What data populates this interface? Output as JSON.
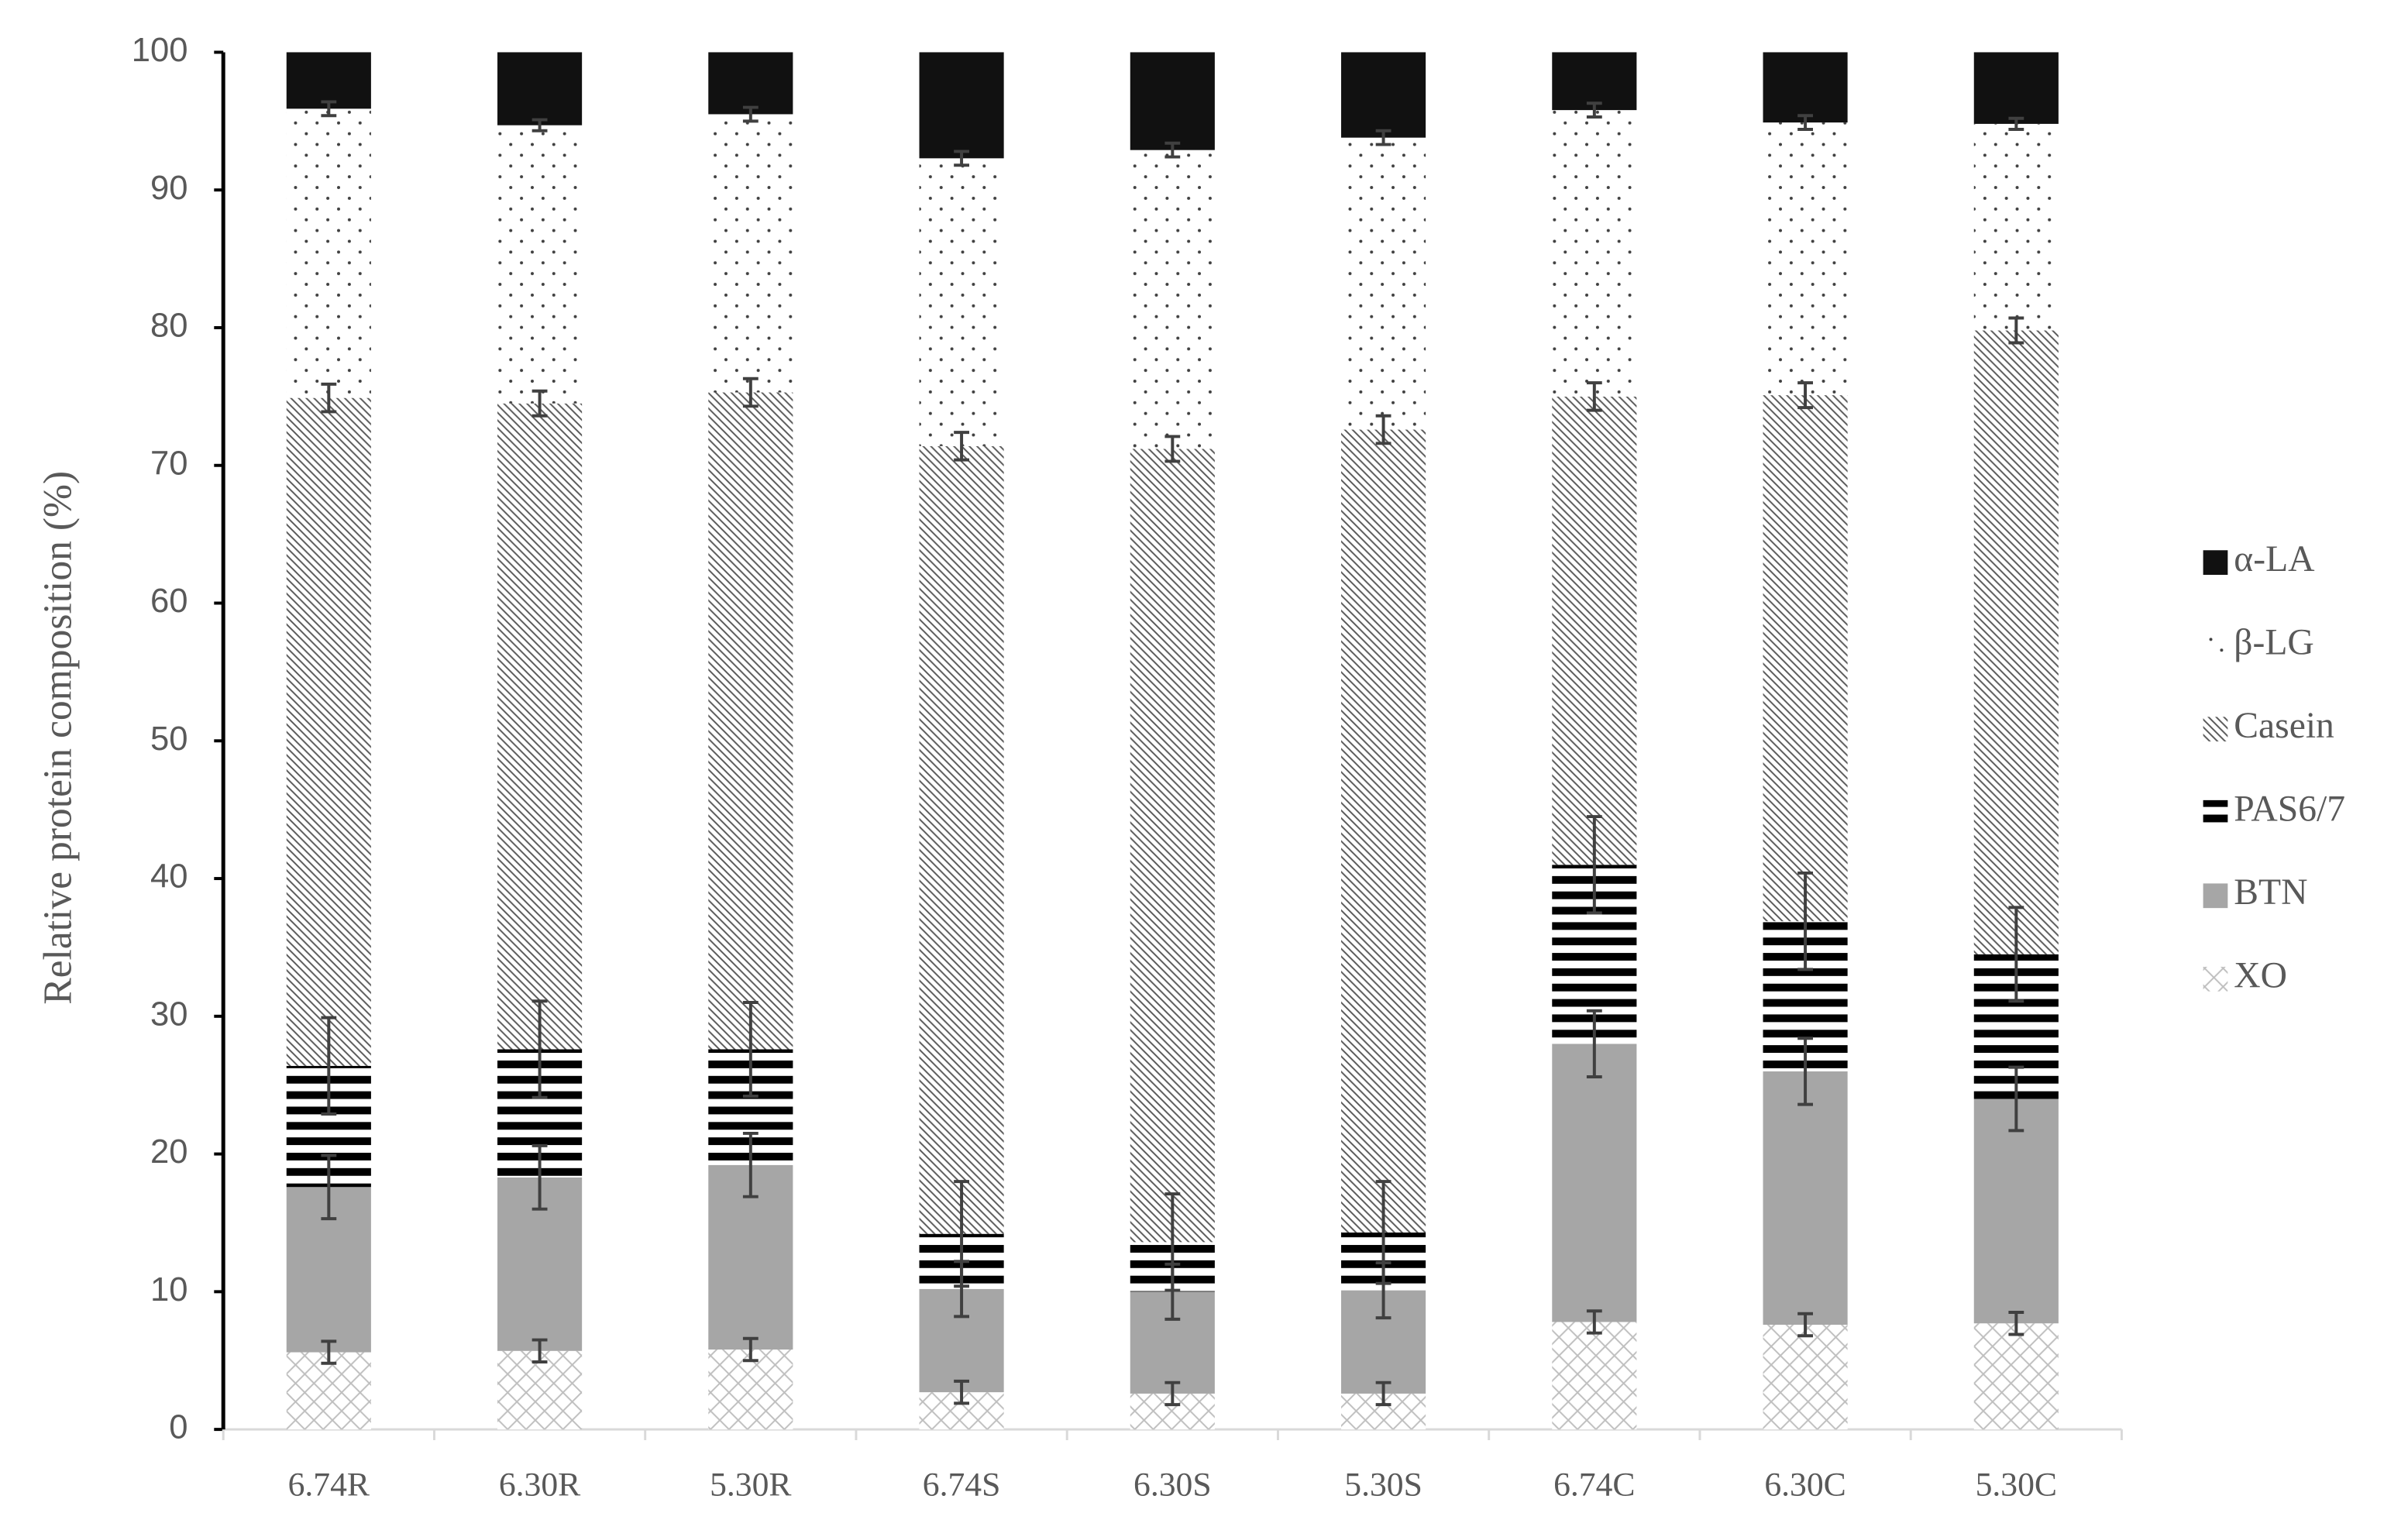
{
  "chart_data": {
    "type": "stacked-bar",
    "y_label": "Relative protein composition (%)",
    "categories": [
      "6.74R",
      "6.30R",
      "5.30R",
      "6.74S",
      "6.30S",
      "5.30S",
      "6.74C",
      "6.30C",
      "5.30C"
    ],
    "ylim": [
      0,
      100
    ],
    "yticks": [
      0,
      10,
      20,
      30,
      40,
      50,
      60,
      70,
      80,
      90,
      100
    ],
    "series": [
      {
        "name": "XO",
        "color": "#bfbfbf",
        "pattern": "crosshatch",
        "values": [
          5.6,
          5.7,
          5.8,
          2.7,
          2.6,
          2.6,
          7.8,
          7.6,
          7.7
        ],
        "errors": [
          0.8,
          0.8,
          0.8,
          0.8,
          0.8,
          0.8,
          0.8,
          0.8,
          0.8
        ]
      },
      {
        "name": "BTN",
        "color": "#a6a6a6",
        "pattern": "solid",
        "values": [
          12.0,
          12.6,
          13.4,
          7.5,
          7.4,
          7.5,
          20.2,
          18.4,
          16.3
        ],
        "errors": [
          2.3,
          2.3,
          2.3,
          2.0,
          2.0,
          2.0,
          2.4,
          2.4,
          2.3
        ]
      },
      {
        "name": "PAS6/7",
        "color": "#000000",
        "pattern": "hstripes",
        "values": [
          8.8,
          9.3,
          8.4,
          4.0,
          3.6,
          4.2,
          13.0,
          10.9,
          10.5
        ],
        "errors": [
          3.5,
          3.5,
          3.4,
          3.8,
          3.5,
          3.7,
          3.5,
          3.5,
          3.4
        ]
      },
      {
        "name": "Casein",
        "color": "#595959",
        "pattern": "diagonal",
        "values": [
          48.5,
          46.9,
          47.7,
          57.2,
          57.6,
          58.3,
          34.0,
          38.2,
          45.3
        ],
        "errors": [
          1.0,
          0.9,
          1.0,
          1.0,
          0.9,
          1.0,
          1.0,
          0.9,
          0.9
        ]
      },
      {
        "name": "β-LG",
        "color": "#404040",
        "pattern": "dots",
        "values": [
          21.0,
          20.2,
          20.2,
          20.9,
          21.7,
          21.2,
          20.8,
          19.8,
          15.0
        ],
        "errors": [
          0.5,
          0.4,
          0.5,
          0.5,
          0.5,
          0.5,
          0.5,
          0.5,
          0.4
        ]
      },
      {
        "name": "α-LA",
        "color": "#111111",
        "pattern": "solid",
        "values": [
          4.1,
          5.3,
          4.5,
          7.7,
          7.1,
          6.2,
          4.2,
          5.1,
          5.2
        ]
      }
    ]
  }
}
